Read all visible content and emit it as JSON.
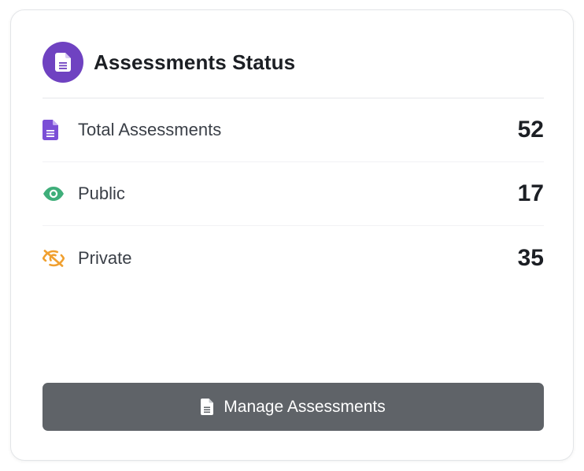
{
  "header": {
    "title": "Assessments Status",
    "icon": "file-icon",
    "icon_bg_color": "#6f42c1"
  },
  "stats": [
    {
      "label": "Total Assessments",
      "value": "52",
      "icon": "file-icon",
      "color": "#7b4fd6"
    },
    {
      "label": "Public",
      "value": "17",
      "icon": "eye-icon",
      "color": "#3fae7a"
    },
    {
      "label": "Private",
      "value": "35",
      "icon": "eye-slash-icon",
      "color": "#f0a030"
    }
  ],
  "button": {
    "label": "Manage Assessments",
    "icon": "file-icon",
    "bg_color": "#5f6368"
  }
}
